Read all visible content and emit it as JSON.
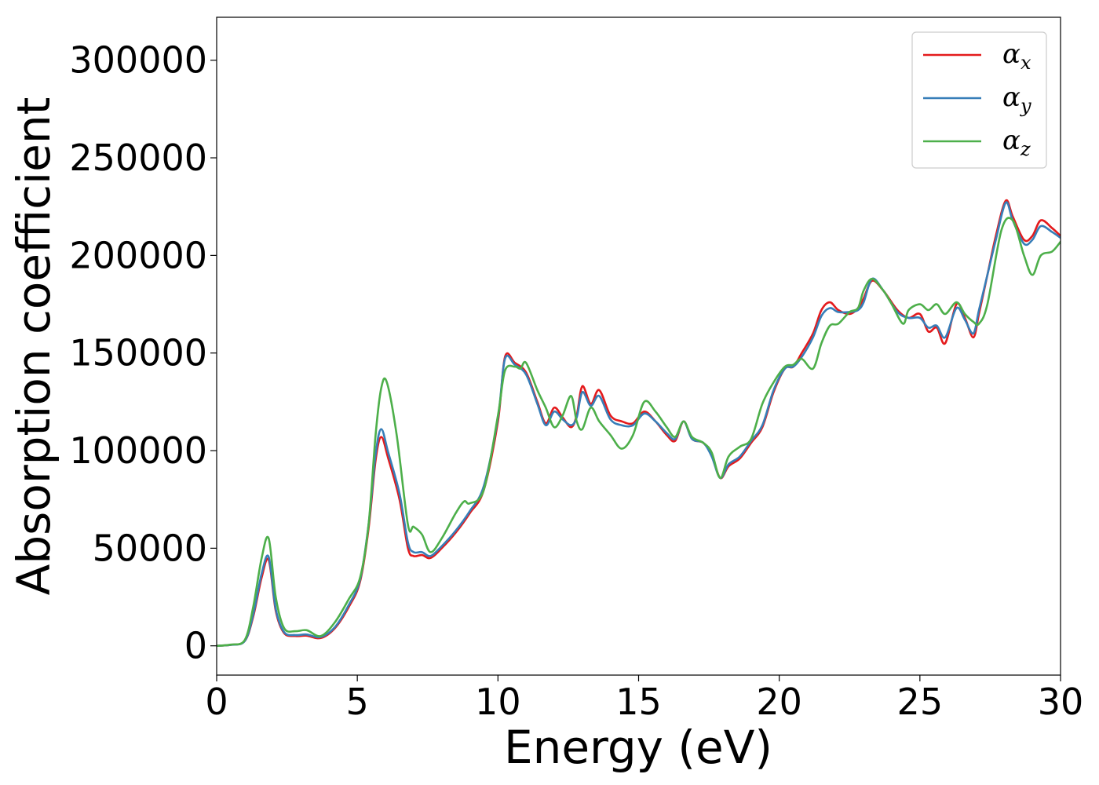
{
  "chart_data": {
    "type": "line",
    "xlabel": "Energy (eV)",
    "ylabel": "Absorption coefficient",
    "xlim": [
      0,
      30
    ],
    "ylim": [
      -15000,
      322000
    ],
    "xticks": [
      0,
      5,
      10,
      15,
      20,
      25,
      30
    ],
    "yticks": [
      0,
      50000,
      100000,
      150000,
      200000,
      250000,
      300000
    ],
    "grid": false,
    "legend_position": "top-right",
    "series": [
      {
        "name": "α_x",
        "label_base": "α",
        "label_sub": "x",
        "color": "#e41a1c",
        "x": [
          0,
          0.5,
          1.0,
          1.3,
          1.6,
          1.85,
          2.1,
          2.4,
          2.8,
          3.2,
          3.7,
          4.2,
          4.7,
          5.1,
          5.4,
          5.65,
          5.85,
          6.1,
          6.5,
          6.8,
          7.0,
          7.3,
          7.6,
          8.0,
          8.5,
          9.0,
          9.5,
          10.0,
          10.25,
          10.6,
          11.0,
          11.4,
          11.7,
          12.0,
          12.3,
          12.6,
          12.8,
          13.0,
          13.3,
          13.6,
          14.0,
          14.4,
          14.8,
          15.2,
          15.6,
          16.0,
          16.3,
          16.6,
          16.9,
          17.3,
          17.6,
          17.9,
          18.2,
          18.6,
          19.0,
          19.4,
          19.8,
          20.2,
          20.5,
          20.8,
          21.2,
          21.5,
          21.8,
          22.1,
          22.5,
          22.8,
          23.0,
          23.3,
          23.7,
          24.2,
          24.6,
          25.0,
          25.3,
          25.6,
          25.9,
          26.3,
          26.6,
          26.9,
          27.1,
          27.4,
          27.7,
          28.05,
          28.3,
          28.7,
          29.0,
          29.3,
          29.7,
          30.0
        ],
        "y": [
          0,
          500,
          2500,
          15000,
          35000,
          44000,
          18000,
          6500,
          5000,
          5200,
          4000,
          9000,
          20000,
          33000,
          60000,
          95000,
          107000,
          96000,
          75000,
          50000,
          46000,
          46500,
          45000,
          50000,
          58000,
          68000,
          80000,
          115000,
          148000,
          145000,
          140000,
          125000,
          114000,
          122000,
          117000,
          112000,
          118000,
          133000,
          124000,
          131000,
          118000,
          115000,
          114000,
          120000,
          115000,
          108000,
          105000,
          115000,
          106000,
          104000,
          98000,
          86000,
          92000,
          96000,
          104000,
          112000,
          130000,
          142000,
          143000,
          150000,
          160000,
          172000,
          176000,
          172000,
          170000,
          173000,
          178000,
          187000,
          182000,
          172000,
          168000,
          170000,
          161000,
          163000,
          155000,
          175000,
          168000,
          158000,
          170000,
          190000,
          210000,
          228000,
          220000,
          208000,
          210000,
          218000,
          214000,
          210000
        ]
      },
      {
        "name": "α_y",
        "label_base": "α",
        "label_sub": "y",
        "color": "#377eb8",
        "x": [
          0,
          0.5,
          1.0,
          1.3,
          1.6,
          1.85,
          2.1,
          2.4,
          2.8,
          3.2,
          3.7,
          4.2,
          4.7,
          5.1,
          5.4,
          5.65,
          5.85,
          6.1,
          6.5,
          6.8,
          7.0,
          7.3,
          7.6,
          8.0,
          8.5,
          9.0,
          9.5,
          10.0,
          10.25,
          10.6,
          11.0,
          11.4,
          11.7,
          12.0,
          12.3,
          12.6,
          12.8,
          13.0,
          13.3,
          13.6,
          14.0,
          14.4,
          14.8,
          15.2,
          15.6,
          16.0,
          16.3,
          16.6,
          16.9,
          17.3,
          17.6,
          17.9,
          18.2,
          18.6,
          19.0,
          19.4,
          19.8,
          20.2,
          20.5,
          20.8,
          21.2,
          21.5,
          21.8,
          22.1,
          22.5,
          22.8,
          23.0,
          23.3,
          23.7,
          24.2,
          24.6,
          25.0,
          25.3,
          25.6,
          25.9,
          26.3,
          26.6,
          26.9,
          27.1,
          27.4,
          27.7,
          28.05,
          28.3,
          28.7,
          29.0,
          29.3,
          29.7,
          30.0
        ],
        "y": [
          0,
          500,
          2500,
          16000,
          37000,
          45500,
          19000,
          7000,
          5500,
          5800,
          4500,
          9500,
          21000,
          34000,
          62000,
          98000,
          111000,
          99000,
          78000,
          53000,
          48000,
          48000,
          46000,
          51000,
          59000,
          69000,
          82000,
          117000,
          147000,
          144000,
          139000,
          124000,
          113000,
          120000,
          116000,
          113000,
          117000,
          130000,
          123000,
          128000,
          116000,
          113000,
          113000,
          119000,
          115000,
          109000,
          106000,
          115000,
          106000,
          104000,
          97000,
          86000,
          93000,
          97000,
          105000,
          113000,
          131000,
          142000,
          143000,
          148000,
          158000,
          169000,
          173000,
          171000,
          171000,
          172000,
          176000,
          188000,
          182000,
          171000,
          168000,
          168000,
          163000,
          164000,
          158000,
          173000,
          167000,
          160000,
          172000,
          190000,
          208000,
          227000,
          218000,
          206000,
          208000,
          215000,
          212000,
          209000
        ]
      },
      {
        "name": "α_z",
        "label_base": "α",
        "label_sub": "z",
        "color": "#4daf4a",
        "x": [
          0,
          0.5,
          1.0,
          1.3,
          1.6,
          1.85,
          2.1,
          2.4,
          2.8,
          3.2,
          3.7,
          4.2,
          4.7,
          5.1,
          5.4,
          5.65,
          5.85,
          6.05,
          6.4,
          6.8,
          7.0,
          7.3,
          7.6,
          8.0,
          8.5,
          8.8,
          9.0,
          9.5,
          10.0,
          10.25,
          10.6,
          10.8,
          11.0,
          11.4,
          11.7,
          12.0,
          12.3,
          12.6,
          12.8,
          13.0,
          13.3,
          13.6,
          14.0,
          14.4,
          14.8,
          15.2,
          15.6,
          16.0,
          16.3,
          16.6,
          16.9,
          17.3,
          17.6,
          17.9,
          18.2,
          18.6,
          19.0,
          19.4,
          19.8,
          20.2,
          20.5,
          20.8,
          21.2,
          21.5,
          21.8,
          22.1,
          22.5,
          22.8,
          23.0,
          23.3,
          23.7,
          24.0,
          24.4,
          24.6,
          25.0,
          25.3,
          25.6,
          25.9,
          26.3,
          26.6,
          26.9,
          27.1,
          27.4,
          27.9,
          28.3,
          28.7,
          29.0,
          29.3,
          29.7,
          30.0
        ],
        "y": [
          0,
          600,
          3000,
          20000,
          45000,
          55000,
          25000,
          9000,
          7500,
          8000,
          5000,
          12000,
          24000,
          35000,
          62000,
          108000,
          132000,
          135000,
          108000,
          62000,
          61000,
          57000,
          48000,
          55000,
          68000,
          74000,
          73000,
          80000,
          118000,
          141000,
          143000,
          142000,
          145000,
          131000,
          122000,
          112000,
          118000,
          128000,
          115000,
          111000,
          122000,
          115000,
          108000,
          101000,
          108000,
          125000,
          120000,
          112000,
          107000,
          115000,
          107000,
          104000,
          99000,
          86000,
          97000,
          102000,
          106000,
          124000,
          135000,
          143000,
          144000,
          147000,
          142000,
          155000,
          164000,
          165000,
          171000,
          173000,
          182000,
          188000,
          182000,
          175000,
          165000,
          172000,
          175000,
          172000,
          175000,
          170000,
          176000,
          170000,
          166000,
          165000,
          175000,
          213000,
          218000,
          200000,
          190000,
          200000,
          202000,
          207000
        ]
      }
    ]
  }
}
